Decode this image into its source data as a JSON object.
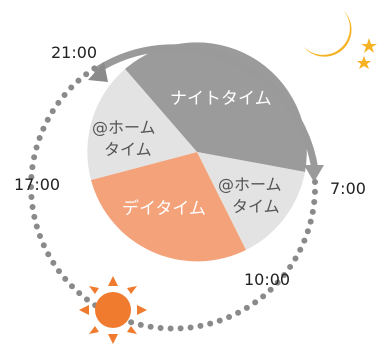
{
  "diagram": {
    "times": {
      "t2100": "21:00",
      "t0700": "7:00",
      "t1000": "10:00",
      "t1700": "17:00"
    },
    "segments": {
      "night": "ナイトタイム",
      "home_right": [
        "@ホーム",
        "タイム"
      ],
      "day": "デイタイム",
      "home_left": [
        "@ホーム",
        "タイム"
      ]
    },
    "icons": {
      "night": "moon-with-stars-icon",
      "day": "sun-icon"
    },
    "colors": {
      "night": "#9b9b9b",
      "home": "#e3e3e3",
      "day": "#f4a27a",
      "arrow": "#9a9a9a",
      "dots": "#8a8a8a",
      "moon": "#f5b324",
      "sun": "#f07a2e"
    }
  }
}
